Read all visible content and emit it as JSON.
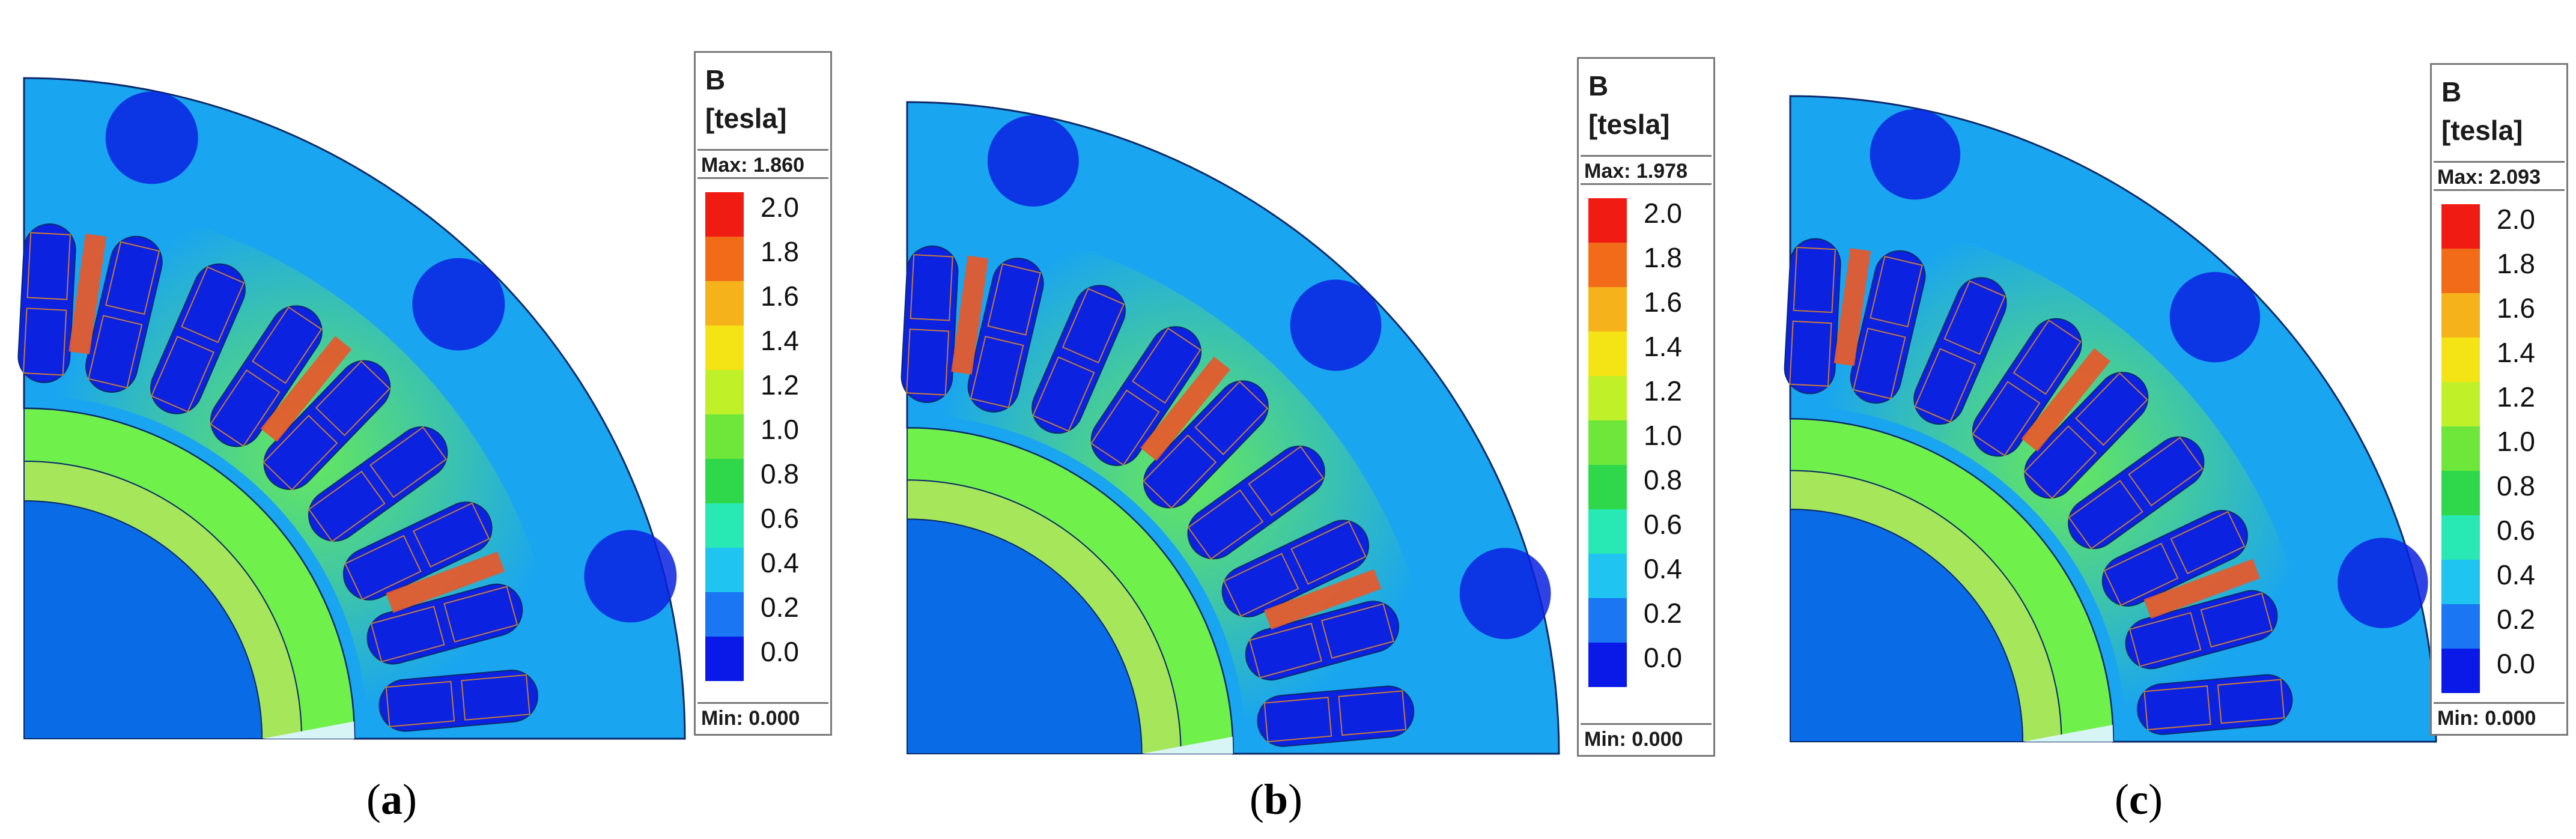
{
  "figure": {
    "colors": {
      "core_field": "#19a5f0",
      "rotor_inner": "#0a6be6",
      "slot_fill": "#0b22e0",
      "coil_outline": "#c87a3c",
      "outline": "#0b2a6a",
      "hot_tooth": "#e8582a",
      "tooth_body": "#6ff04a",
      "band": "#a6e65a",
      "wedge": "#d8f5f5"
    }
  },
  "panels": [
    {
      "caption": "a",
      "legend": {
        "quantity": "B",
        "unit": "[tesla]",
        "max_label": "Max: 1.860",
        "min_label": "Min: 0.000",
        "ticks": [
          "2.0",
          "1.8",
          "1.6",
          "1.4",
          "1.2",
          "1.0",
          "0.8",
          "0.6",
          "0.4",
          "0.2",
          "0.0"
        ],
        "colors": [
          "#f01c14",
          "#f26b18",
          "#f5b21b",
          "#f4e416",
          "#bff028",
          "#6fe63a",
          "#2fd84a",
          "#28e8b4",
          "#1fc4f0",
          "#1a76f2",
          "#0a18e8"
        ]
      }
    },
    {
      "caption": "b",
      "legend": {
        "quantity": "B",
        "unit": "[tesla]",
        "max_label": "Max: 1.978",
        "min_label": "Min: 0.000",
        "ticks": [
          "2.0",
          "1.8",
          "1.6",
          "1.4",
          "1.2",
          "1.0",
          "0.8",
          "0.6",
          "0.4",
          "0.2",
          "0.0"
        ],
        "colors": [
          "#f01c14",
          "#f26b18",
          "#f5b21b",
          "#f4e416",
          "#bff028",
          "#6fe63a",
          "#2fd84a",
          "#28e8b4",
          "#1fc4f0",
          "#1a76f2",
          "#0a18e8"
        ]
      }
    },
    {
      "caption": "c",
      "legend": {
        "quantity": "B",
        "unit": "[tesla]",
        "max_label": "Max: 2.093",
        "min_label": "Min: 0.000",
        "ticks": [
          "2.0",
          "1.8",
          "1.6",
          "1.4",
          "1.2",
          "1.0",
          "0.8",
          "0.6",
          "0.4",
          "0.2",
          "0.0"
        ],
        "colors": [
          "#f01c14",
          "#f26b18",
          "#f5b21b",
          "#f4e416",
          "#bff028",
          "#6fe63a",
          "#2fd84a",
          "#28e8b4",
          "#1fc4f0",
          "#1a76f2",
          "#0a18e8"
        ]
      }
    }
  ]
}
